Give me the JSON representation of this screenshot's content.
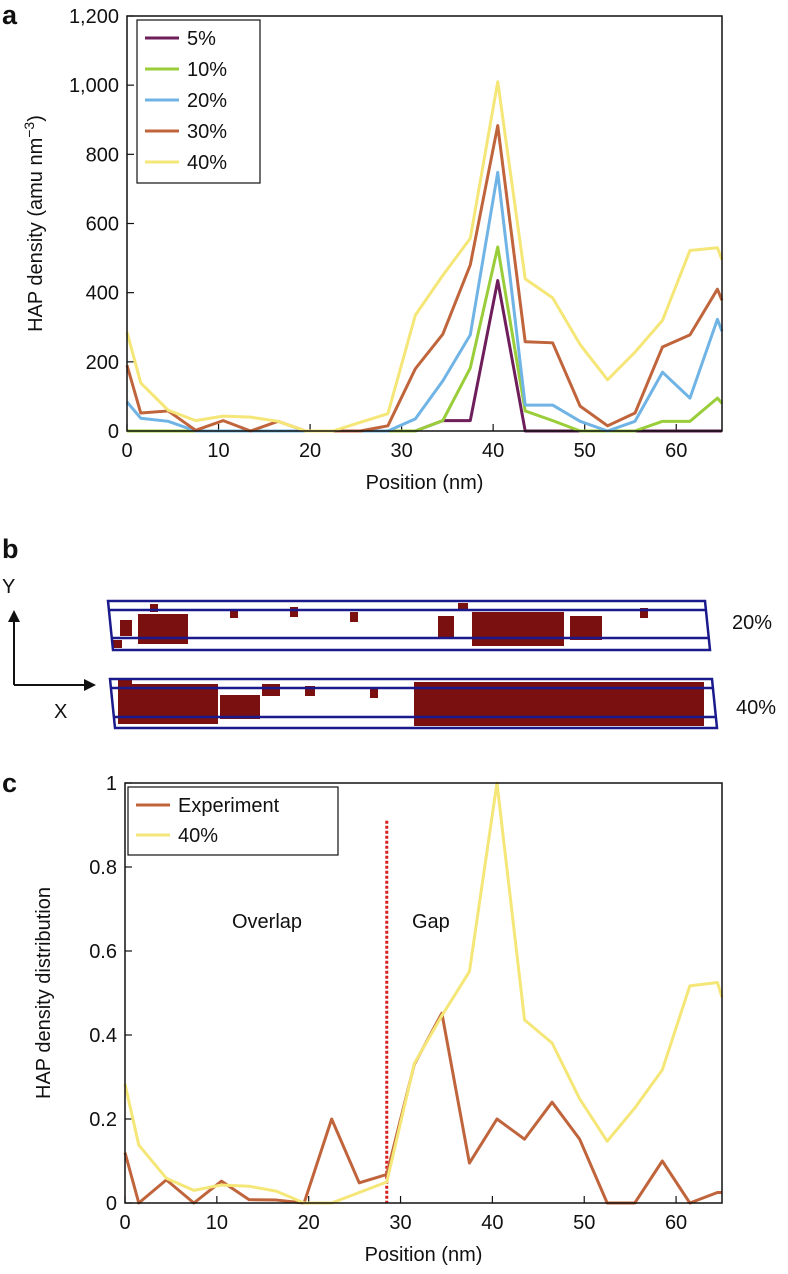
{
  "panels": [
    "a",
    "b",
    "c"
  ],
  "chart_data": [
    {
      "type": "line",
      "xlabel": "Position (nm)",
      "ylabel": {
        "text": "HAP density (amu nm",
        "sup": "−3",
        "end": ")"
      },
      "xlim": [
        0,
        65
      ],
      "ylim": [
        0,
        1200
      ],
      "xticks": [
        0,
        10,
        20,
        30,
        40,
        50,
        60
      ],
      "yticks": [
        0,
        200,
        400,
        600,
        800,
        {
          "value": 1000,
          "label": "1,000"
        },
        {
          "value": 1200,
          "label": "1,200"
        }
      ],
      "legend": "upper left",
      "x": [
        0,
        1.5,
        4.5,
        7.5,
        10.5,
        13.5,
        16.5,
        19.5,
        22.5,
        25.5,
        28.5,
        31.5,
        34.5,
        37.5,
        40.5,
        43.5,
        46.5,
        49.5,
        52.5,
        55.5,
        58.5,
        61.5,
        64.5,
        65
      ],
      "series": [
        {
          "name": "5%",
          "color": "#6e1e5a",
          "values": [
            0,
            0,
            0,
            0,
            0,
            0,
            0,
            0,
            0,
            0,
            0,
            0,
            30,
            30,
            435,
            0,
            0,
            0,
            0,
            0,
            0,
            0,
            0,
            0
          ]
        },
        {
          "name": "10%",
          "color": "#9acd3a",
          "values": [
            0,
            0,
            0,
            0,
            0,
            0,
            0,
            0,
            0,
            0,
            0,
            0,
            30,
            182,
            532,
            58,
            30,
            0,
            0,
            0,
            28,
            28,
            95,
            80
          ]
        },
        {
          "name": "20%",
          "color": "#70b4e6",
          "values": [
            84,
            37,
            28,
            0,
            0,
            0,
            0,
            0,
            0,
            0,
            0,
            35,
            145,
            278,
            748,
            75,
            75,
            28,
            0,
            28,
            170,
            95,
            323,
            288
          ]
        },
        {
          "name": "30%",
          "color": "#c0643c",
          "values": [
            190,
            52,
            58,
            2,
            30,
            0,
            28,
            0,
            0,
            0,
            15,
            180,
            280,
            480,
            883,
            258,
            255,
            72,
            15,
            52,
            243,
            278,
            410,
            378
          ]
        },
        {
          "name": "40%",
          "color": "#f5e678",
          "values": [
            286,
            139,
            60,
            30,
            43,
            40,
            28,
            0,
            0,
            25,
            50,
            335,
            450,
            557,
            1010,
            440,
            385,
            250,
            148,
            228,
            320,
            522,
            530,
            495
          ]
        }
      ]
    },
    {
      "type": "line",
      "xlabel": "Position (nm)",
      "ylabel": {
        "text": "HAP density distribution"
      },
      "xlim": [
        0,
        65
      ],
      "ylim": [
        0,
        1
      ],
      "xticks": [
        0,
        10,
        20,
        30,
        40,
        50,
        60
      ],
      "yticks": [
        0,
        0.2,
        0.4,
        0.6,
        0.8,
        1
      ],
      "legend": "upper left",
      "annotations": [
        "Overlap",
        "Gap"
      ],
      "vline": {
        "x": 28.5,
        "ymax": 0.91,
        "color": "#d62020"
      },
      "x": [
        0,
        1.5,
        4.5,
        7.5,
        10.5,
        13.5,
        16.5,
        19.5,
        22.5,
        25.5,
        28.5,
        31.5,
        34.5,
        37.5,
        40.5,
        43.5,
        46.5,
        49.5,
        52.5,
        55.5,
        58.5,
        61.5,
        64.5,
        65
      ],
      "series": [
        {
          "name": "Experiment",
          "color": "#c0643c",
          "values": [
            0.12,
            0,
            0.055,
            0,
            0.052,
            0.008,
            0.007,
            0,
            0.2,
            0.048,
            0.068,
            0.33,
            0.452,
            0.095,
            0.2,
            0.152,
            0.24,
            0.152,
            0,
            0,
            0.1,
            0,
            0.025,
            0.025
          ]
        },
        {
          "name": "40%",
          "color": "#f5e678",
          "values": [
            0.283,
            0.138,
            0.059,
            0.03,
            0.043,
            0.04,
            0.028,
            0,
            0,
            0.025,
            0.05,
            0.332,
            0.446,
            0.551,
            1,
            0.436,
            0.381,
            0.248,
            0.147,
            0.226,
            0.317,
            0.517,
            0.525,
            0.49
          ]
        }
      ]
    }
  ],
  "simulation": {
    "axes": [
      "Y",
      "X"
    ],
    "labels": [
      "20%",
      "40%"
    ]
  }
}
